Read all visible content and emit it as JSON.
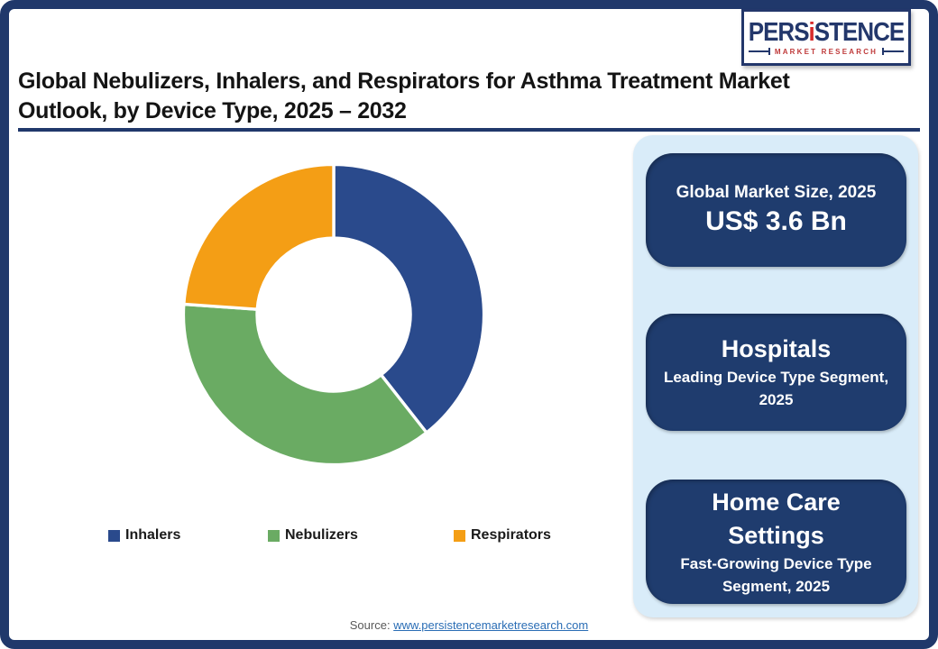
{
  "logo": {
    "brand_pre": "PERS",
    "brand_i": "i",
    "brand_post": "STENCE",
    "tagline": "MARKET RESEARCH"
  },
  "header": {
    "title_line1": "Global Nebulizers, Inhalers, and Respirators for Asthma Treatment Market",
    "title_line2": "Outlook, by Device Type, 2025 – 2032"
  },
  "chart_data": {
    "type": "pie",
    "subtype": "donut",
    "title": "Global Nebulizers, Inhalers, and Respirators for Asthma Treatment Market Outlook, by Device Type, 2025 – 2032",
    "categories": [
      "Inhalers",
      "Nebulizers",
      "Respirators"
    ],
    "values": [
      39.4,
      36.7,
      23.9
    ],
    "value_unit": "percent-share (estimated from arc angles)",
    "colors": [
      "#2a4a8c",
      "#6aab63",
      "#f49e15"
    ],
    "start_angle_deg": 0,
    "direction": "clockwise",
    "inner_radius_ratio": 0.51,
    "legend_position": "bottom",
    "slice_gap_color": "#ffffff"
  },
  "cards": [
    {
      "heading": "Global Market Size, 2025",
      "value": "US$ 3.6 Bn"
    },
    {
      "heading": "Hospitals",
      "sub": "Leading Device Type Segment, 2025"
    },
    {
      "heading": "Home Care Settings",
      "sub": "Fast-Growing Device Type Segment, 2025"
    }
  ],
  "footer": {
    "source_label": "Source:",
    "source_link": "www.persistencemarketresearch.com"
  },
  "theme": {
    "frame_navy": "#20386b",
    "card_navy": "#1f3c6e",
    "panel_light_blue": "#d9ecf9",
    "link_blue": "#2a6db5",
    "logo_red": "#d92b2b"
  }
}
